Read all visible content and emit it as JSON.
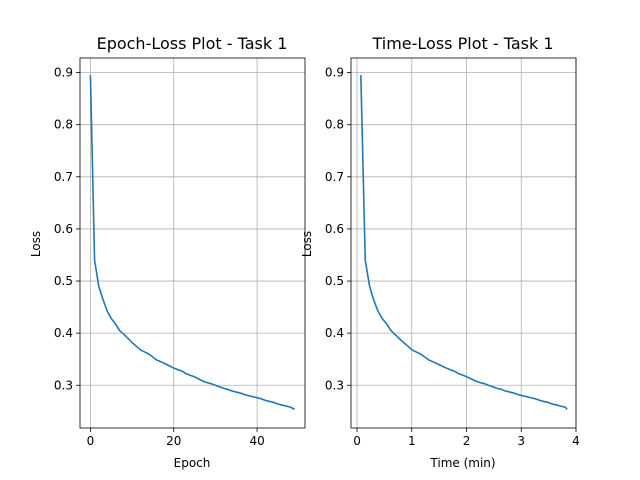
{
  "chart_data": [
    {
      "type": "line",
      "title": "Epoch-Loss Plot - Task 1",
      "xlabel": "Epoch",
      "ylabel": "Loss",
      "xlim": [
        -2.5,
        51.5
      ],
      "ylim": [
        0.218,
        0.928
      ],
      "xticks": [
        0,
        20,
        40
      ],
      "yticks": [
        0.3,
        0.4,
        0.5,
        0.6,
        0.7,
        0.8,
        0.9
      ],
      "grid": true,
      "line_color": "#1f77b4",
      "series": [
        {
          "x": [
            0,
            1,
            2,
            3,
            4,
            5,
            6,
            7,
            8,
            9,
            10,
            11,
            12,
            13,
            14,
            15,
            16,
            17,
            18,
            19,
            20,
            21,
            22,
            23,
            24,
            25,
            26,
            27,
            28,
            29,
            30,
            31,
            32,
            33,
            34,
            35,
            36,
            37,
            38,
            39,
            40,
            41,
            42,
            43,
            44,
            45,
            46,
            47,
            48,
            49
          ],
          "y": [
            0.895,
            0.54,
            0.49,
            0.465,
            0.443,
            0.428,
            0.418,
            0.405,
            0.398,
            0.39,
            0.382,
            0.375,
            0.368,
            0.364,
            0.36,
            0.354,
            0.348,
            0.345,
            0.341,
            0.337,
            0.333,
            0.33,
            0.327,
            0.322,
            0.319,
            0.316,
            0.312,
            0.308,
            0.305,
            0.303,
            0.3,
            0.297,
            0.294,
            0.292,
            0.289,
            0.287,
            0.285,
            0.282,
            0.28,
            0.278,
            0.276,
            0.274,
            0.271,
            0.269,
            0.267,
            0.264,
            0.262,
            0.26,
            0.258,
            0.254
          ]
        }
      ]
    },
    {
      "type": "line",
      "title": "Time-Loss Plot - Task 1",
      "xlabel": "Time (min)",
      "ylabel": "Loss",
      "xlim": [
        -0.11,
        4.0
      ],
      "ylim": [
        0.218,
        0.928
      ],
      "xticks": [
        0,
        1,
        2,
        3,
        4
      ],
      "yticks": [
        0.3,
        0.4,
        0.5,
        0.6,
        0.7,
        0.8,
        0.9
      ],
      "grid": true,
      "line_color": "#1f77b4",
      "series": [
        {
          "x": [
            0.07,
            0.15,
            0.23,
            0.3,
            0.38,
            0.46,
            0.54,
            0.62,
            0.69,
            0.77,
            0.85,
            0.93,
            1.0,
            1.08,
            1.16,
            1.24,
            1.32,
            1.39,
            1.47,
            1.55,
            1.63,
            1.7,
            1.78,
            1.86,
            1.94,
            2.01,
            2.09,
            2.17,
            2.25,
            2.33,
            2.4,
            2.48,
            2.56,
            2.64,
            2.71,
            2.79,
            2.87,
            2.95,
            3.02,
            3.1,
            3.18,
            3.26,
            3.34,
            3.41,
            3.49,
            3.57,
            3.65,
            3.72,
            3.8,
            3.84
          ],
          "y": [
            0.895,
            0.54,
            0.49,
            0.465,
            0.443,
            0.428,
            0.418,
            0.405,
            0.398,
            0.39,
            0.382,
            0.375,
            0.368,
            0.364,
            0.36,
            0.354,
            0.348,
            0.345,
            0.341,
            0.337,
            0.333,
            0.33,
            0.327,
            0.322,
            0.319,
            0.316,
            0.312,
            0.308,
            0.305,
            0.303,
            0.3,
            0.297,
            0.294,
            0.292,
            0.289,
            0.287,
            0.285,
            0.282,
            0.28,
            0.278,
            0.276,
            0.274,
            0.271,
            0.269,
            0.267,
            0.264,
            0.262,
            0.26,
            0.258,
            0.254
          ]
        }
      ]
    }
  ]
}
